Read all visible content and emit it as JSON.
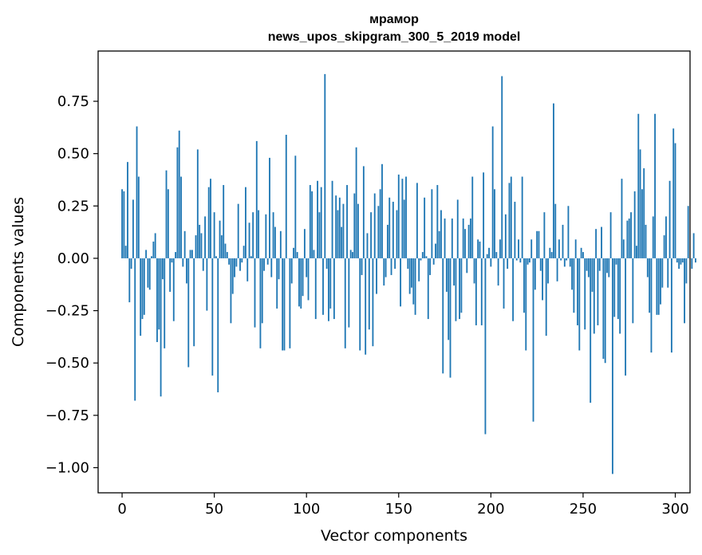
{
  "chart_data": {
    "type": "bar",
    "title": "мрамор",
    "subtitle": "news_upos_skipgram_300_5_2019 model",
    "xlabel": "Vector components",
    "ylabel": "Components values",
    "xlim": [
      -13,
      308
    ],
    "ylim": [
      -1.12,
      0.99
    ],
    "xticks": [
      0,
      50,
      100,
      150,
      200,
      250,
      300
    ],
    "xtick_labels": [
      "0",
      "50",
      "100",
      "150",
      "200",
      "250",
      "300"
    ],
    "yticks": [
      -1.0,
      -0.75,
      -0.5,
      -0.25,
      0.0,
      0.25,
      0.5,
      0.75
    ],
    "ytick_labels": [
      "−1.00",
      "−0.75",
      "−0.50",
      "−0.25",
      "0.00",
      "0.25",
      "0.50",
      "0.75"
    ],
    "grid": false,
    "bar_color": "#1f77b4",
    "values": [
      0.33,
      0.32,
      0.06,
      0.46,
      -0.21,
      -0.05,
      0.28,
      -0.68,
      0.63,
      0.39,
      -0.37,
      -0.29,
      -0.27,
      0.04,
      -0.14,
      -0.15,
      0.01,
      0.08,
      0.12,
      -0.4,
      -0.34,
      -0.66,
      -0.1,
      -0.43,
      0.42,
      0.33,
      -0.16,
      -0.02,
      -0.3,
      0.03,
      0.53,
      0.61,
      0.39,
      -0.04,
      0.13,
      -0.12,
      -0.52,
      0.04,
      0.04,
      -0.42,
      0.11,
      0.52,
      0.16,
      0.12,
      -0.06,
      0.2,
      -0.25,
      0.34,
      0.38,
      -0.56,
      0.22,
      0.01,
      -0.64,
      0.18,
      0.11,
      0.35,
      0.07,
      0.03,
      -0.03,
      -0.31,
      -0.17,
      -0.09,
      -0.04,
      0.26,
      -0.06,
      -0.02,
      0.06,
      0.34,
      -0.11,
      0.17,
      0.01,
      0.22,
      -0.33,
      0.56,
      0.23,
      -0.43,
      -0.31,
      -0.06,
      0.21,
      -0.03,
      0.48,
      -0.09,
      0.22,
      0.15,
      -0.24,
      -0.1,
      0.13,
      -0.44,
      -0.44,
      0.59,
      0.0,
      -0.43,
      -0.12,
      0.05,
      0.49,
      0.03,
      -0.23,
      -0.24,
      -0.18,
      0.14,
      -0.09,
      -0.2,
      0.35,
      0.32,
      0.04,
      -0.29,
      0.37,
      0.22,
      0.34,
      -0.27,
      0.88,
      -0.05,
      -0.3,
      -0.24,
      0.37,
      -0.29,
      0.3,
      0.23,
      0.29,
      0.15,
      0.26,
      -0.43,
      0.35,
      -0.33,
      0.04,
      0.03,
      0.31,
      0.53,
      0.26,
      -0.44,
      -0.08,
      0.44,
      -0.46,
      0.12,
      -0.34,
      0.22,
      -0.42,
      0.31,
      -0.17,
      0.25,
      0.33,
      0.45,
      -0.13,
      -0.09,
      0.16,
      0.29,
      -0.08,
      0.27,
      -0.05,
      0.23,
      0.4,
      -0.23,
      0.38,
      0.28,
      0.39,
      -0.05,
      -0.17,
      -0.14,
      -0.22,
      -0.27,
      0.36,
      -0.11,
      -0.01,
      0.03,
      0.29,
      0.01,
      -0.29,
      -0.08,
      0.33,
      -0.03,
      0.07,
      0.35,
      0.13,
      0.23,
      -0.55,
      0.19,
      -0.16,
      -0.39,
      -0.57,
      0.19,
      -0.13,
      -0.3,
      0.28,
      -0.29,
      -0.26,
      0.19,
      0.14,
      -0.07,
      0.16,
      0.19,
      0.39,
      -0.12,
      -0.32,
      0.09,
      0.08,
      -0.32,
      0.41,
      -0.84,
      0.02,
      0.05,
      -0.04,
      0.63,
      0.33,
      0.03,
      -0.13,
      0.09,
      0.87,
      -0.24,
      0.21,
      -0.05,
      0.36,
      0.39,
      -0.3,
      0.27,
      -0.01,
      0.09,
      -0.02,
      0.39,
      -0.26,
      -0.44,
      -0.03,
      -0.02,
      0.09,
      -0.78,
      -0.15,
      0.13,
      0.13,
      -0.06,
      -0.2,
      0.22,
      -0.37,
      -0.12,
      0.05,
      0.03,
      0.74,
      0.26,
      -0.11,
      0.09,
      -0.01,
      0.16,
      -0.04,
      -0.01,
      0.25,
      -0.04,
      -0.15,
      -0.26,
      0.09,
      -0.32,
      -0.44,
      0.05,
      0.03,
      -0.34,
      -0.06,
      -0.09,
      -0.69,
      -0.16,
      -0.36,
      0.14,
      -0.32,
      -0.06,
      0.15,
      -0.48,
      -0.5,
      -0.07,
      -0.09,
      0.22,
      -1.03,
      -0.28,
      -0.03,
      -0.29,
      -0.36,
      0.38,
      0.09,
      -0.56,
      0.18,
      0.19,
      0.22,
      -0.31,
      0.32,
      0.06,
      0.69,
      0.52,
      0.33,
      0.43,
      0.16,
      -0.09,
      -0.26,
      -0.45,
      0.2,
      0.69,
      -0.27,
      -0.27,
      -0.22,
      -0.14,
      0.11,
      0.2,
      -0.14,
      0.37,
      -0.45,
      0.62,
      0.55,
      -0.02,
      -0.05,
      -0.03,
      -0.02,
      -0.31,
      -0.12,
      0.25,
      0.0,
      -0.05,
      0.12,
      -0.02
    ]
  }
}
